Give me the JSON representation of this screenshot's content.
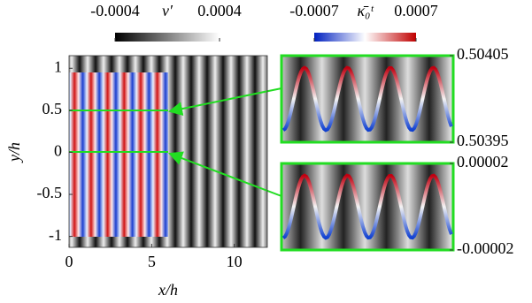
{
  "chart_data": {
    "type": "heatmap",
    "xlabel": "x/h",
    "ylabel": "y/h",
    "xlim": [
      0,
      12
    ],
    "ylim": [
      -1.13,
      1.15
    ],
    "xticks": [
      0,
      5,
      10
    ],
    "yticks": [
      -1,
      -0.5,
      0,
      0.5,
      1
    ],
    "colorbars": [
      {
        "label": "v′",
        "clim": [
          -0.0004,
          0.0004
        ],
        "cticks": [
          -0.0004,
          0.0004
        ]
      },
      {
        "label": "κ̄₀ᵗ",
        "clim": [
          -0.0007,
          0.0007
        ],
        "cticks": [
          -0.0007,
          0.0007
        ]
      }
    ],
    "insets": [
      {
        "ylim": [
          0.50395,
          0.50405
        ],
        "yticks": [
          0.50395,
          0.50405
        ]
      },
      {
        "ylim": [
          -2e-05,
          2e-05
        ],
        "yticks": [
          -2e-05,
          2e-05
        ]
      }
    ]
  }
}
